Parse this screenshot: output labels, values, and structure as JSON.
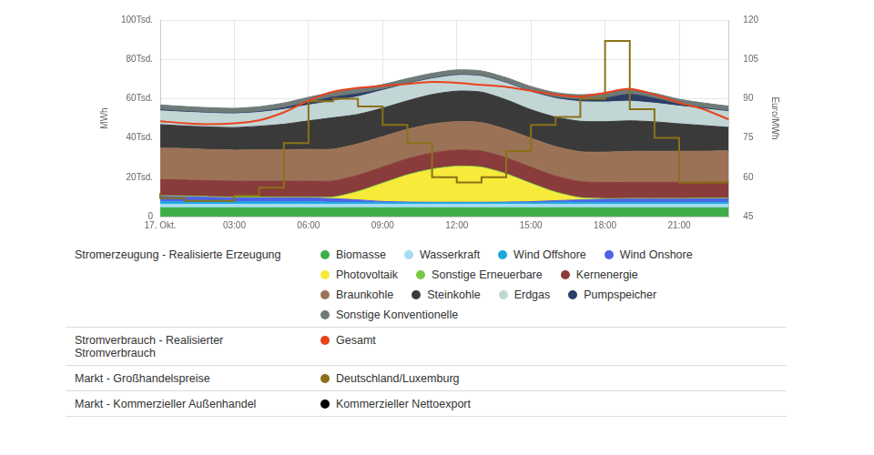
{
  "chart_data": {
    "type": "line",
    "stacked": true,
    "grid": true,
    "legend": "bottom",
    "y_label": "MWh",
    "y2_label": "Euro/MWh",
    "categories": [
      "17. Okt.",
      null,
      null,
      "03:00",
      null,
      null,
      "06:00",
      null,
      null,
      "09:00",
      null,
      null,
      "12:00",
      null,
      null,
      "15:00",
      null,
      null,
      "18:00",
      null,
      null,
      "21:00",
      null,
      null
    ],
    "ylim": [
      0,
      100000
    ],
    "yticks": [
      0,
      {
        "value": 20000,
        "label": "20Tsd."
      },
      {
        "value": 40000,
        "label": "40Tsd."
      },
      {
        "value": 60000,
        "label": "60Tsd."
      },
      {
        "value": 80000,
        "label": "80Tsd."
      },
      {
        "value": 100000,
        "label": "100Tsd."
      }
    ],
    "y2lim": [
      45,
      120
    ],
    "y2ticks": [
      45,
      60,
      75,
      90,
      105,
      120
    ],
    "series": [
      {
        "name": "Biomasse",
        "type": "area",
        "color": "#3fae49",
        "values": [
          4500,
          4500,
          4500,
          4500,
          4500,
          4500,
          4500,
          4500,
          4500,
          4500,
          4500,
          4500,
          4500,
          4500,
          4500,
          4500,
          4500,
          4500,
          4500,
          4500,
          4500,
          4500,
          4500,
          4500
        ]
      },
      {
        "name": "Wasserkraft",
        "type": "area",
        "color": "#a6dcf2",
        "values": [
          1800,
          1800,
          1800,
          1800,
          1800,
          1800,
          1800,
          1800,
          1800,
          1800,
          1800,
          1800,
          1800,
          1800,
          1800,
          1800,
          1800,
          1800,
          1800,
          1800,
          1800,
          1800,
          1800,
          1800
        ]
      },
      {
        "name": "Wind Offshore",
        "type": "area",
        "color": "#1aa7e0",
        "values": [
          1200,
          1200,
          1200,
          1200,
          1200,
          1200,
          1200,
          1000,
          1000,
          800,
          800,
          800,
          800,
          800,
          800,
          800,
          1000,
          1000,
          1000,
          1000,
          1000,
          1000,
          1000,
          1000
        ]
      },
      {
        "name": "Wind Onshore",
        "type": "area",
        "color": "#5060e6",
        "values": [
          2800,
          2600,
          2300,
          2000,
          2000,
          2000,
          2000,
          1800,
          1200,
          600,
          300,
          200,
          200,
          200,
          300,
          500,
          800,
          1200,
          1500,
          1600,
          1600,
          1600,
          1700,
          1800
        ]
      },
      {
        "name": "Photovoltaik",
        "type": "area",
        "color": "#f7ea3a",
        "values": [
          0,
          0,
          0,
          0,
          0,
          0,
          0,
          500,
          4000,
          9000,
          13500,
          16500,
          18000,
          17500,
          14000,
          9000,
          4000,
          800,
          0,
          0,
          0,
          0,
          0,
          0
        ]
      },
      {
        "name": "Sonstige Erneuerbare",
        "type": "area",
        "color": "#7ac943",
        "values": [
          400,
          400,
          400,
          400,
          400,
          400,
          400,
          400,
          400,
          400,
          400,
          400,
          400,
          400,
          400,
          400,
          400,
          400,
          400,
          400,
          400,
          400,
          400,
          400
        ]
      },
      {
        "name": "Kernenergie",
        "type": "area",
        "color": "#8a3b3b",
        "values": [
          8100,
          8100,
          8100,
          8100,
          8100,
          8100,
          8100,
          8100,
          8100,
          8100,
          8100,
          8100,
          8100,
          8100,
          8100,
          8100,
          8100,
          8100,
          8100,
          8100,
          8100,
          8100,
          8100,
          8100
        ]
      },
      {
        "name": "Braunkohle",
        "type": "area",
        "color": "#9b7256",
        "values": [
          16000,
          16000,
          15800,
          15800,
          16000,
          16000,
          16200,
          16200,
          16000,
          15500,
          15000,
          14800,
          14500,
          14500,
          14500,
          14800,
          15000,
          15200,
          15500,
          15800,
          15800,
          15800,
          15800,
          15800
        ]
      },
      {
        "name": "Steinkohle",
        "type": "area",
        "color": "#3a3a3a",
        "values": [
          12000,
          11500,
          11500,
          11500,
          12000,
          13000,
          14500,
          16000,
          15000,
          14500,
          14500,
          15000,
          15500,
          15500,
          15000,
          14500,
          15000,
          15500,
          15500,
          15500,
          15000,
          14000,
          13000,
          12000
        ]
      },
      {
        "name": "Erdgas",
        "type": "area",
        "color": "#c2d6d6",
        "values": [
          7000,
          7000,
          7000,
          7000,
          7000,
          7500,
          8000,
          8500,
          9000,
          9000,
          8500,
          8000,
          8000,
          8000,
          8500,
          9000,
          9500,
          10000,
          10000,
          10000,
          9500,
          9000,
          8500,
          8000
        ]
      },
      {
        "name": "Pumpspeicher",
        "type": "area",
        "color": "#2c3e66",
        "values": [
          500,
          400,
          300,
          300,
          400,
          800,
          1500,
          2000,
          1500,
          500,
          300,
          300,
          300,
          300,
          300,
          300,
          500,
          1000,
          2000,
          3500,
          2500,
          1000,
          500,
          300
        ]
      },
      {
        "name": "Sonstige Konventionelle",
        "type": "area",
        "color": "#6e7b78",
        "values": [
          2500,
          2500,
          2500,
          2500,
          2500,
          2500,
          2500,
          2500,
          2500,
          2500,
          2500,
          2500,
          2500,
          2500,
          2500,
          2500,
          2500,
          2500,
          2500,
          2500,
          2500,
          2500,
          2500,
          2500
        ]
      },
      {
        "name": "Gesamt",
        "type": "line",
        "color": "#e8431c",
        "values": [
          48500,
          47500,
          47000,
          47500,
          49000,
          53000,
          59000,
          63500,
          65500,
          66500,
          67500,
          68500,
          68000,
          67000,
          66000,
          64000,
          62000,
          61000,
          63000,
          65000,
          62000,
          58000,
          54500,
          49500
        ]
      },
      {
        "name": "Deutschland/Luxemburg",
        "type": "line",
        "line_style": "step",
        "axis": "y2",
        "color": "#8a7118",
        "values": [
          54,
          52,
          51,
          51,
          53,
          56,
          73,
          89,
          90,
          87,
          80,
          73,
          60,
          58,
          60,
          70,
          80,
          83,
          90,
          112,
          86,
          75,
          58,
          58
        ]
      },
      {
        "name": "Kommerzieller Nettoexport",
        "type": "line",
        "color": "#000000",
        "values": [
          null,
          null,
          null,
          null,
          null,
          null,
          null,
          null,
          null,
          null,
          null,
          null,
          null,
          null,
          null,
          null,
          null,
          null,
          null,
          null,
          null,
          null,
          null,
          null
        ]
      }
    ],
    "legend_groups": [
      {
        "title": "Stromerzeugung - Realisierte Erzeugung",
        "items": [
          "Biomasse",
          "Wasserkraft",
          "Wind Offshore",
          "Wind Onshore",
          "Photovoltaik",
          "Sonstige Erneuerbare",
          "Kernenergie",
          "Braunkohle",
          "Steinkohle",
          "Erdgas",
          "Pumpspeicher",
          "Sonstige Konventionelle"
        ]
      },
      {
        "title": "Stromverbrauch - Realisierter Stromverbrauch",
        "items": [
          "Gesamt"
        ]
      },
      {
        "title": "Markt - Großhandelspreise",
        "items": [
          "Deutschland/Luxemburg"
        ]
      },
      {
        "title": "Markt - Kommerzieller Außenhandel",
        "items": [
          "Kommerzieller Nettoexport"
        ]
      }
    ]
  }
}
